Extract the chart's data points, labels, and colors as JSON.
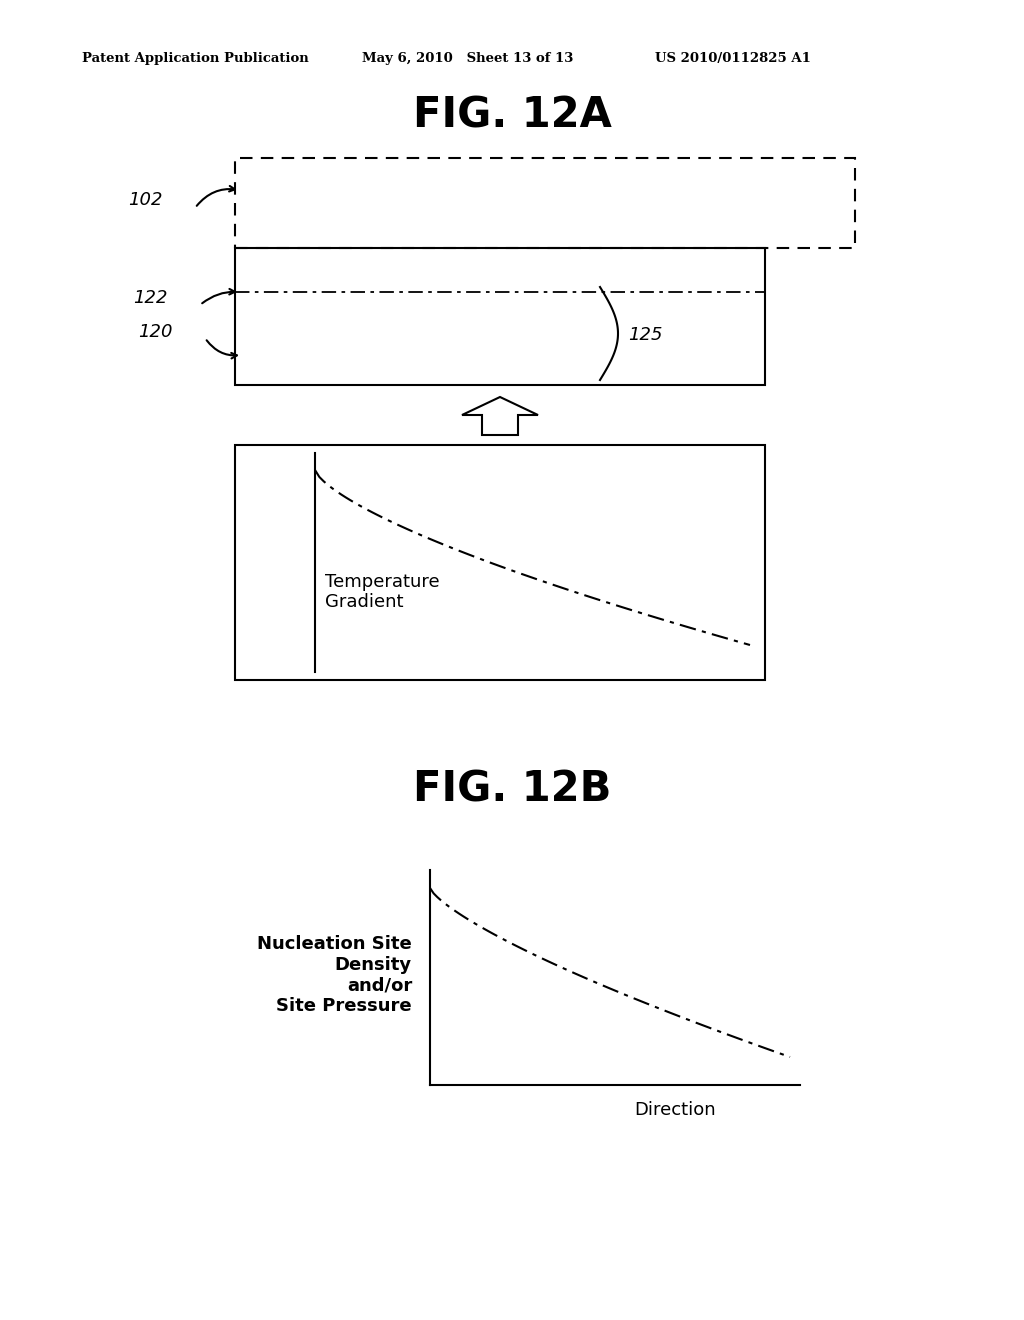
{
  "header_left": "Patent Application Publication",
  "header_mid": "May 6, 2010   Sheet 13 of 13",
  "header_right": "US 2010/0112825 A1",
  "fig12a_title": "FIG. 12A",
  "fig12b_title": "FIG. 12B",
  "label_102": "102",
  "label_122": "122",
  "label_120": "120",
  "label_125": "125",
  "temp_gradient_text": "Temperature\nGradient",
  "nucleation_text": "Nucleation Site\nDensity\nand/or\nSite Pressure",
  "direction_label": "Direction",
  "bg_color": "#ffffff",
  "line_color": "#000000"
}
